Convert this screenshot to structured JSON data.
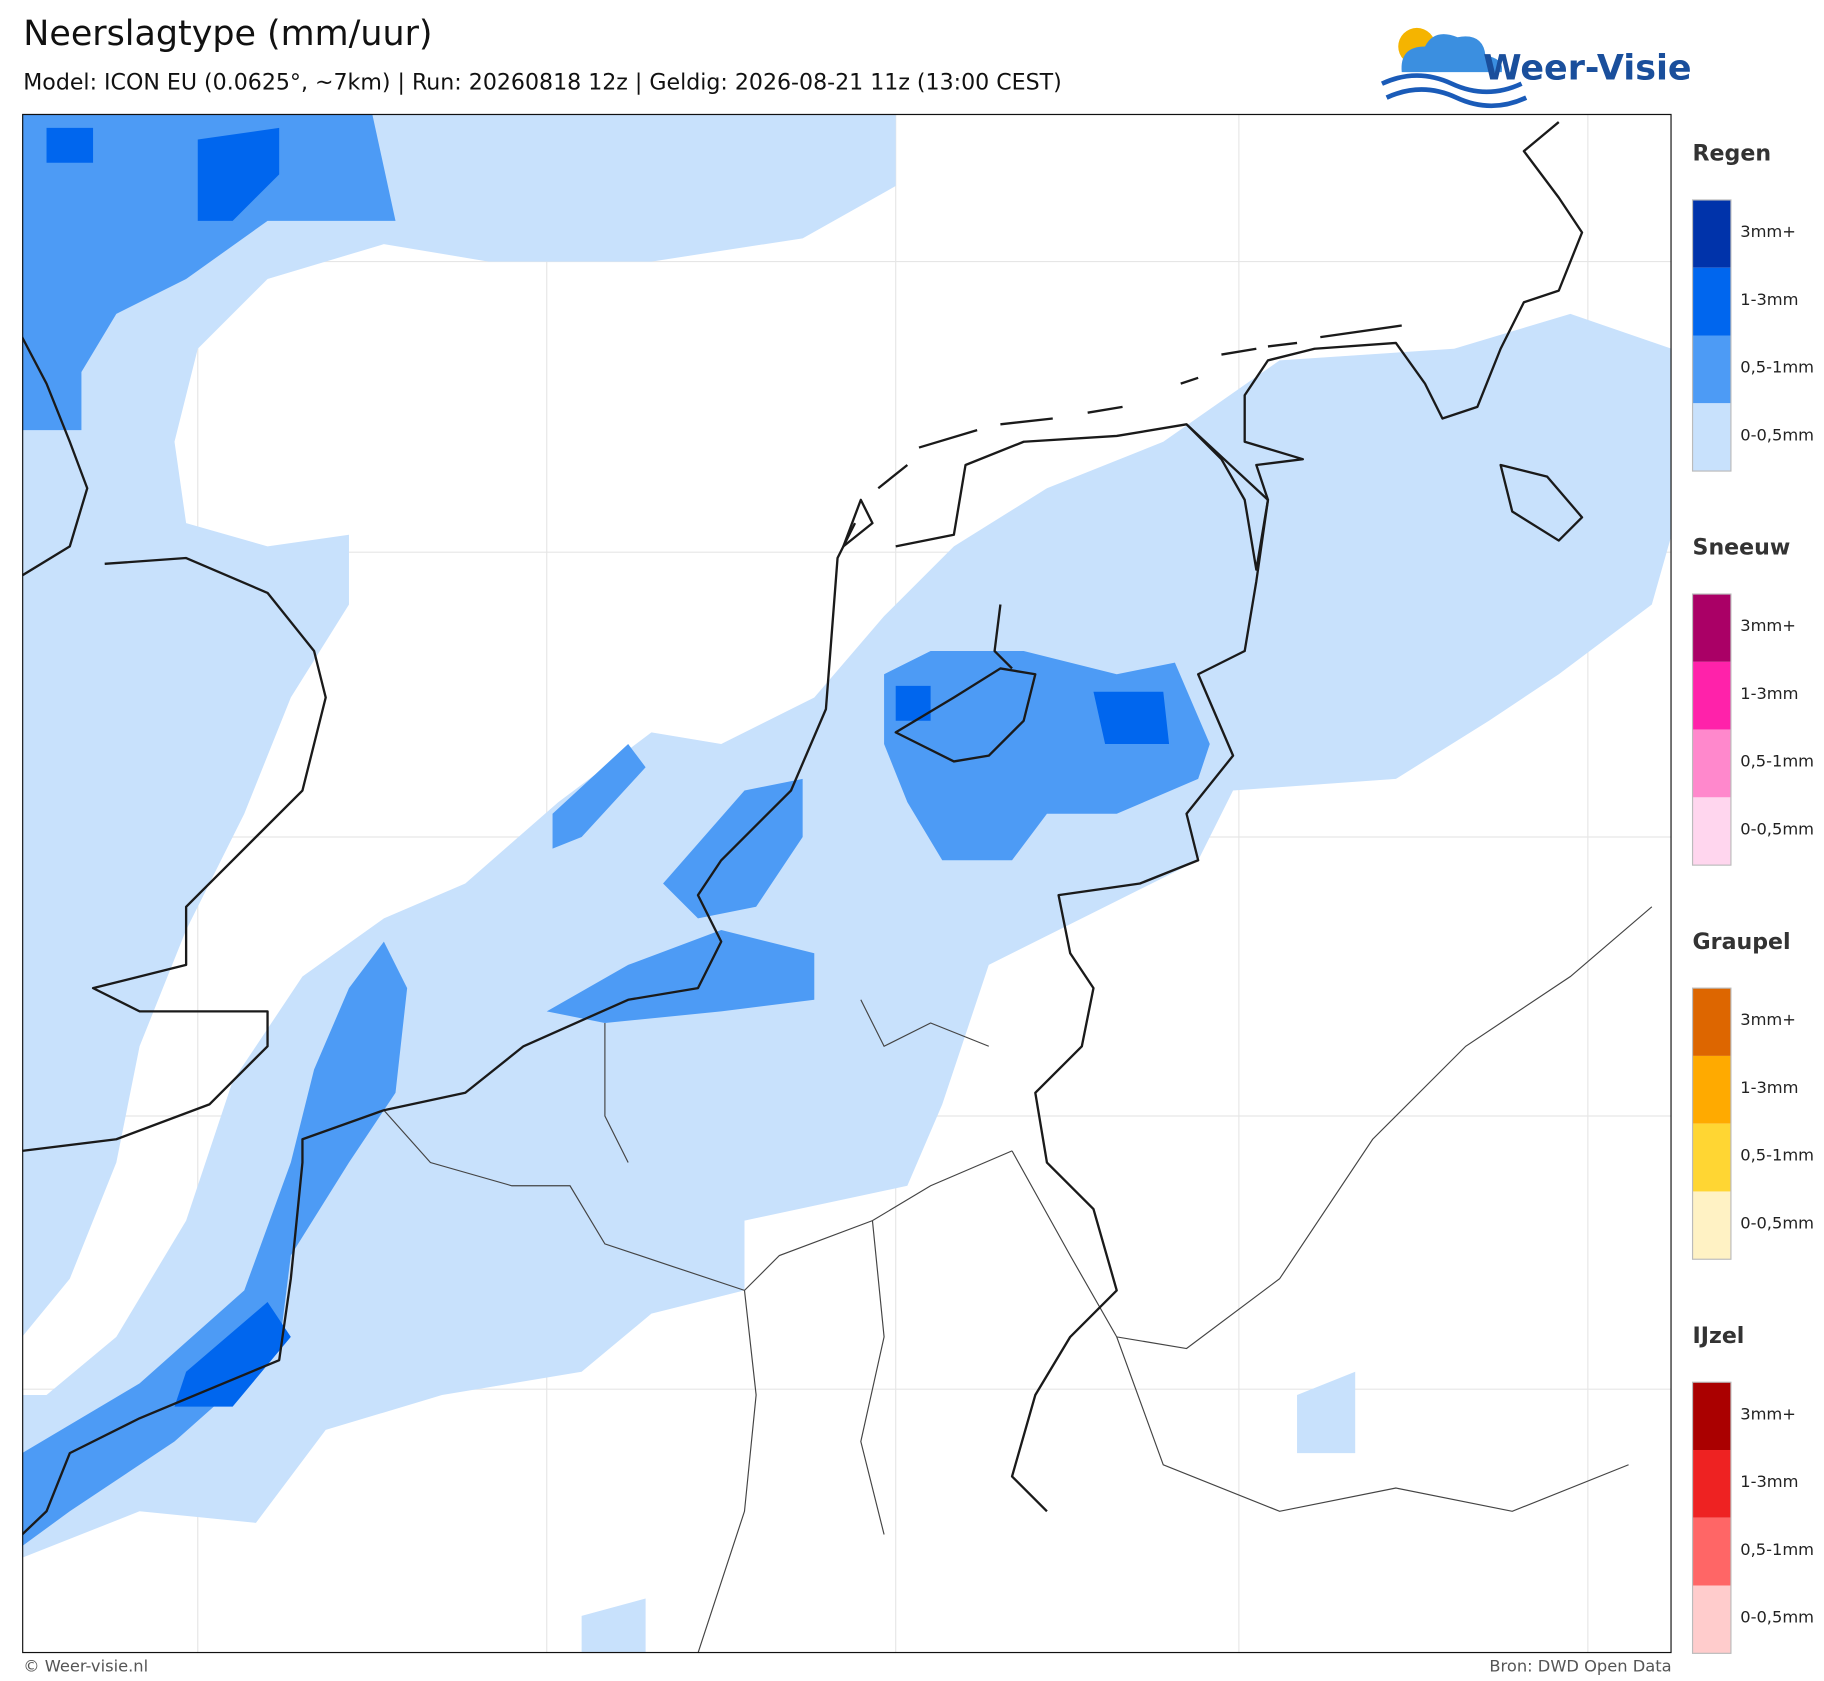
{
  "header": {
    "title": "Neerslagtype (mm/uur)",
    "subtitle": "Model: ICON EU (0.0625°, ~7km)  |  Run: 20260818 12z  |  Geldig: 2026-08-21 11z (13:00 CEST)",
    "logo": "Weer-Visie"
  },
  "legend": {
    "groups": [
      {
        "title": "Regen",
        "items": [
          {
            "label": "3mm+",
            "color": "#0033aa"
          },
          {
            "label": "1-3mm",
            "color": "#0066ee"
          },
          {
            "label": "0,5-1mm",
            "color": "#4d9bf5"
          },
          {
            "label": "0-0,5mm",
            "color": "#c8e1fc"
          }
        ]
      },
      {
        "title": "Sneeuw",
        "items": [
          {
            "label": "3mm+",
            "color": "#aa0066"
          },
          {
            "label": "1-3mm",
            "color": "#ff22aa"
          },
          {
            "label": "0,5-1mm",
            "color": "#ff88cc"
          },
          {
            "label": "0-0,5mm",
            "color": "#ffd6ee"
          }
        ]
      },
      {
        "title": "Graupel",
        "items": [
          {
            "label": "3mm+",
            "color": "#dd6600"
          },
          {
            "label": "1-3mm",
            "color": "#ffaa00"
          },
          {
            "label": "0,5-1mm",
            "color": "#ffd633"
          },
          {
            "label": "0-0,5mm",
            "color": "#fff2c4"
          }
        ]
      },
      {
        "title": "IJzel",
        "items": [
          {
            "label": "3mm+",
            "color": "#aa0000"
          },
          {
            "label": "1-3mm",
            "color": "#ee2222"
          },
          {
            "label": "0,5-1mm",
            "color": "#ff6666"
          },
          {
            "label": "0-0,5mm",
            "color": "#ffcccc"
          }
        ]
      }
    ]
  },
  "footer": {
    "copyright": "© Weer-visie.nl",
    "source": "Bron: DWD Open Data"
  }
}
